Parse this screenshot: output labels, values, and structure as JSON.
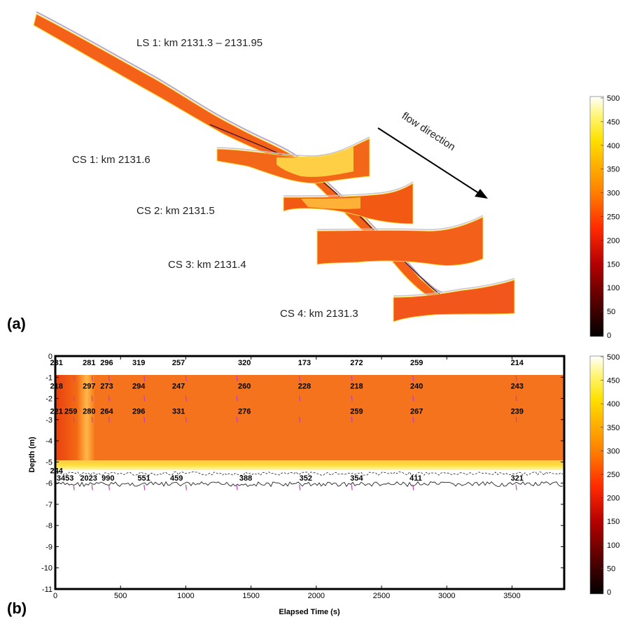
{
  "chart_data": [
    {
      "type": "heatmap",
      "panel_label": "(a)",
      "annotations": {
        "ls1": "LS 1: km 2131.3 – 2131.95",
        "cs1": "CS 1: km 2131.6",
        "cs2": "CS 2: km 2131.5",
        "cs3": "CS 3: km 2131.4",
        "cs4": "CS 4: km 2131.3",
        "flow": "flow direction"
      },
      "colorbar": {
        "range": [
          0,
          500
        ],
        "ticks": [
          0,
          50,
          100,
          150,
          200,
          250,
          300,
          350,
          400,
          450,
          500
        ]
      }
    },
    {
      "type": "heatmap",
      "panel_label": "(b)",
      "xlabel": "Elapsed Time (s)",
      "ylabel": "Depth (m)",
      "xlim": [
        0,
        3900
      ],
      "ylim": [
        -11,
        0
      ],
      "xticks": [
        0,
        500,
        1000,
        1500,
        2000,
        2500,
        3000,
        3500
      ],
      "yticks": [
        0,
        -1,
        -2,
        -3,
        -4,
        -5,
        -6,
        -7,
        -8,
        -9,
        -10,
        -11
      ],
      "colorbar": {
        "range": [
          0,
          500
        ],
        "ticks": [
          0,
          50,
          100,
          150,
          200,
          250,
          300,
          350,
          400,
          450,
          500
        ]
      },
      "row_labels": [
        {
          "depth": -0.3,
          "values": [
            {
              "x": -40,
              "v": "231"
            },
            {
              "x": 210,
              "v": "281"
            },
            {
              "x": 345,
              "v": "296"
            },
            {
              "x": 590,
              "v": "319"
            },
            {
              "x": 895,
              "v": "257"
            },
            {
              "x": 1400,
              "v": "320"
            },
            {
              "x": 1860,
              "v": "173"
            },
            {
              "x": 2260,
              "v": "272"
            },
            {
              "x": 2720,
              "v": "259"
            },
            {
              "x": 3490,
              "v": "214"
            }
          ]
        },
        {
          "depth": -1.4,
          "values": [
            {
              "x": -40,
              "v": "218"
            },
            {
              "x": 210,
              "v": "297"
            },
            {
              "x": 345,
              "v": "273"
            },
            {
              "x": 590,
              "v": "294"
            },
            {
              "x": 895,
              "v": "247"
            },
            {
              "x": 1400,
              "v": "260"
            },
            {
              "x": 1860,
              "v": "228"
            },
            {
              "x": 2260,
              "v": "218"
            },
            {
              "x": 2720,
              "v": "240"
            },
            {
              "x": 3490,
              "v": "243"
            }
          ]
        },
        {
          "depth": -2.6,
          "values": [
            {
              "x": -40,
              "v": "221"
            },
            {
              "x": 70,
              "v": "259"
            },
            {
              "x": 210,
              "v": "280"
            },
            {
              "x": 345,
              "v": "264"
            },
            {
              "x": 590,
              "v": "296"
            },
            {
              "x": 895,
              "v": "331"
            },
            {
              "x": 1400,
              "v": "276"
            },
            {
              "x": 2260,
              "v": "259"
            },
            {
              "x": 2720,
              "v": "267"
            },
            {
              "x": 3490,
              "v": "239"
            }
          ]
        },
        {
          "depth": -5.4,
          "values": [
            {
              "x": -40,
              "v": "244"
            }
          ]
        },
        {
          "depth": -5.75,
          "values": [
            {
              "x": 10,
              "v": "3453"
            },
            {
              "x": 190,
              "v": "2023"
            },
            {
              "x": 355,
              "v": "990"
            },
            {
              "x": 630,
              "v": "551"
            },
            {
              "x": 880,
              "v": "459"
            },
            {
              "x": 1410,
              "v": "388"
            },
            {
              "x": 1870,
              "v": "352"
            },
            {
              "x": 2260,
              "v": "354"
            },
            {
              "x": 2715,
              "v": "411"
            },
            {
              "x": 3490,
              "v": "321"
            }
          ]
        }
      ]
    }
  ]
}
